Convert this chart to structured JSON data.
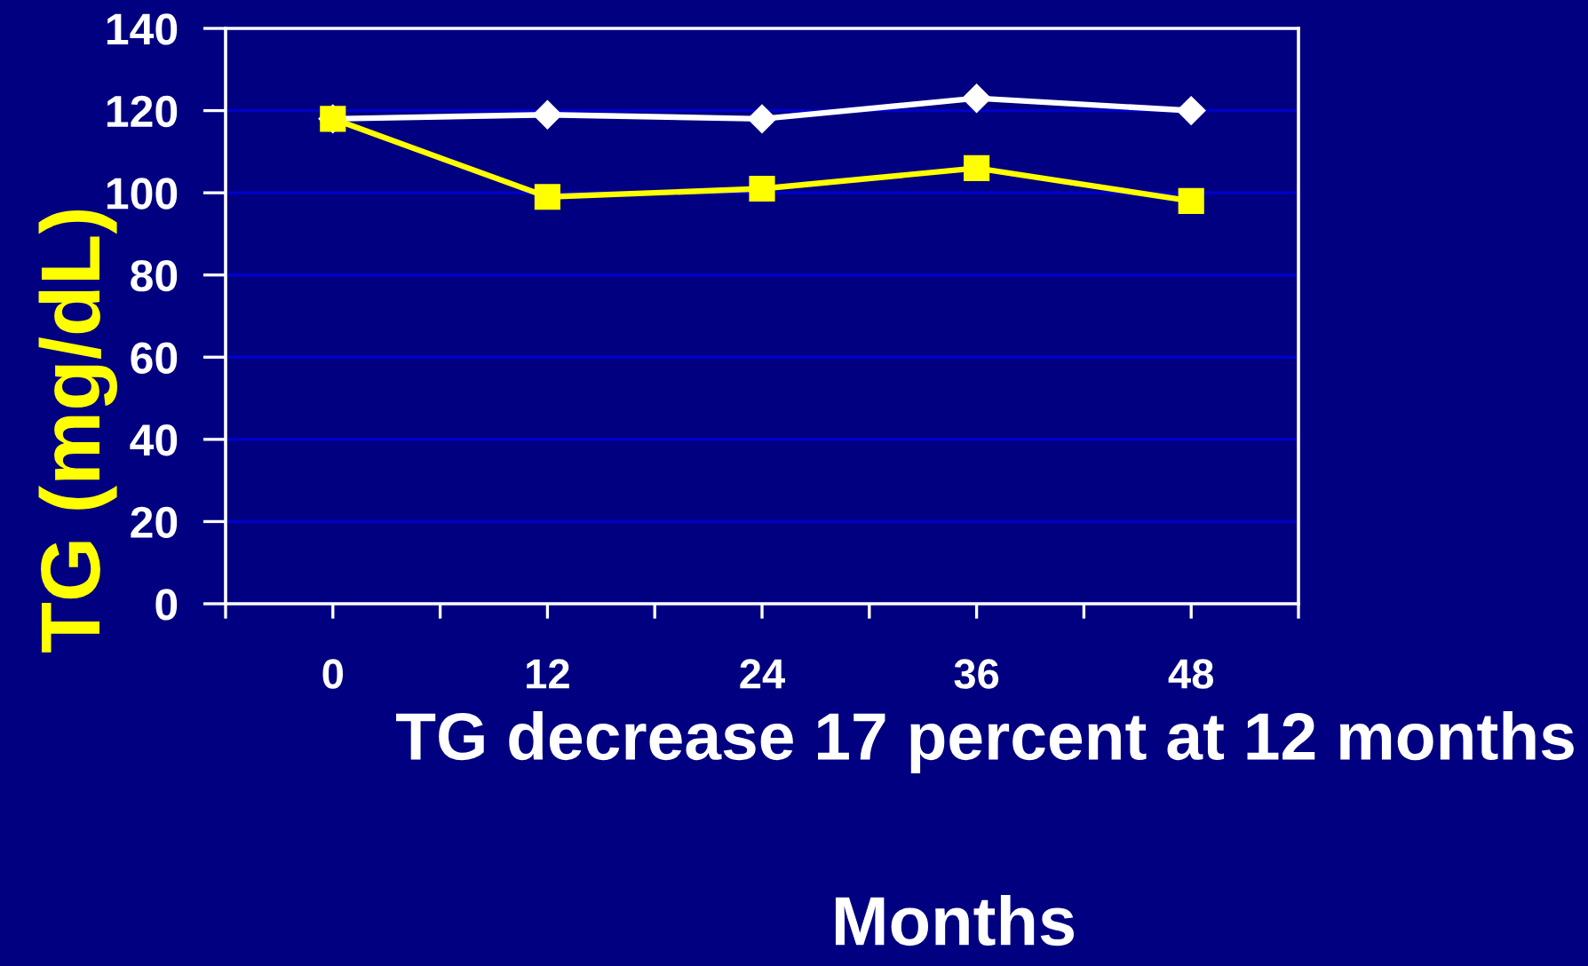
{
  "chart_data": {
    "type": "line",
    "x": [
      0,
      12,
      24,
      36,
      48
    ],
    "xlim": [
      -6,
      54
    ],
    "xticks": [
      {
        "value": -6,
        "label": null
      },
      0,
      {
        "value": 6,
        "label": null
      },
      12,
      {
        "value": 18,
        "label": null
      },
      24,
      {
        "value": 30,
        "label": null
      },
      36,
      {
        "value": 42,
        "label": null
      },
      48,
      {
        "value": 54,
        "label": null
      }
    ],
    "ylim": [
      0,
      140
    ],
    "yticks": [
      0,
      20,
      40,
      60,
      80,
      100,
      120,
      140
    ],
    "xlabel": "Months",
    "ylabel": "TG (mg/dL)",
    "annotations": [
      "TG decrease 17 percent at 12 months"
    ],
    "grid": "y",
    "series": [
      {
        "color": "#ffffff",
        "marker": "diamond",
        "values": [
          118,
          119,
          118,
          123,
          120
        ]
      },
      {
        "color": "#ffff00",
        "marker": "square",
        "values": [
          118,
          99,
          101,
          106,
          98
        ]
      }
    ]
  }
}
